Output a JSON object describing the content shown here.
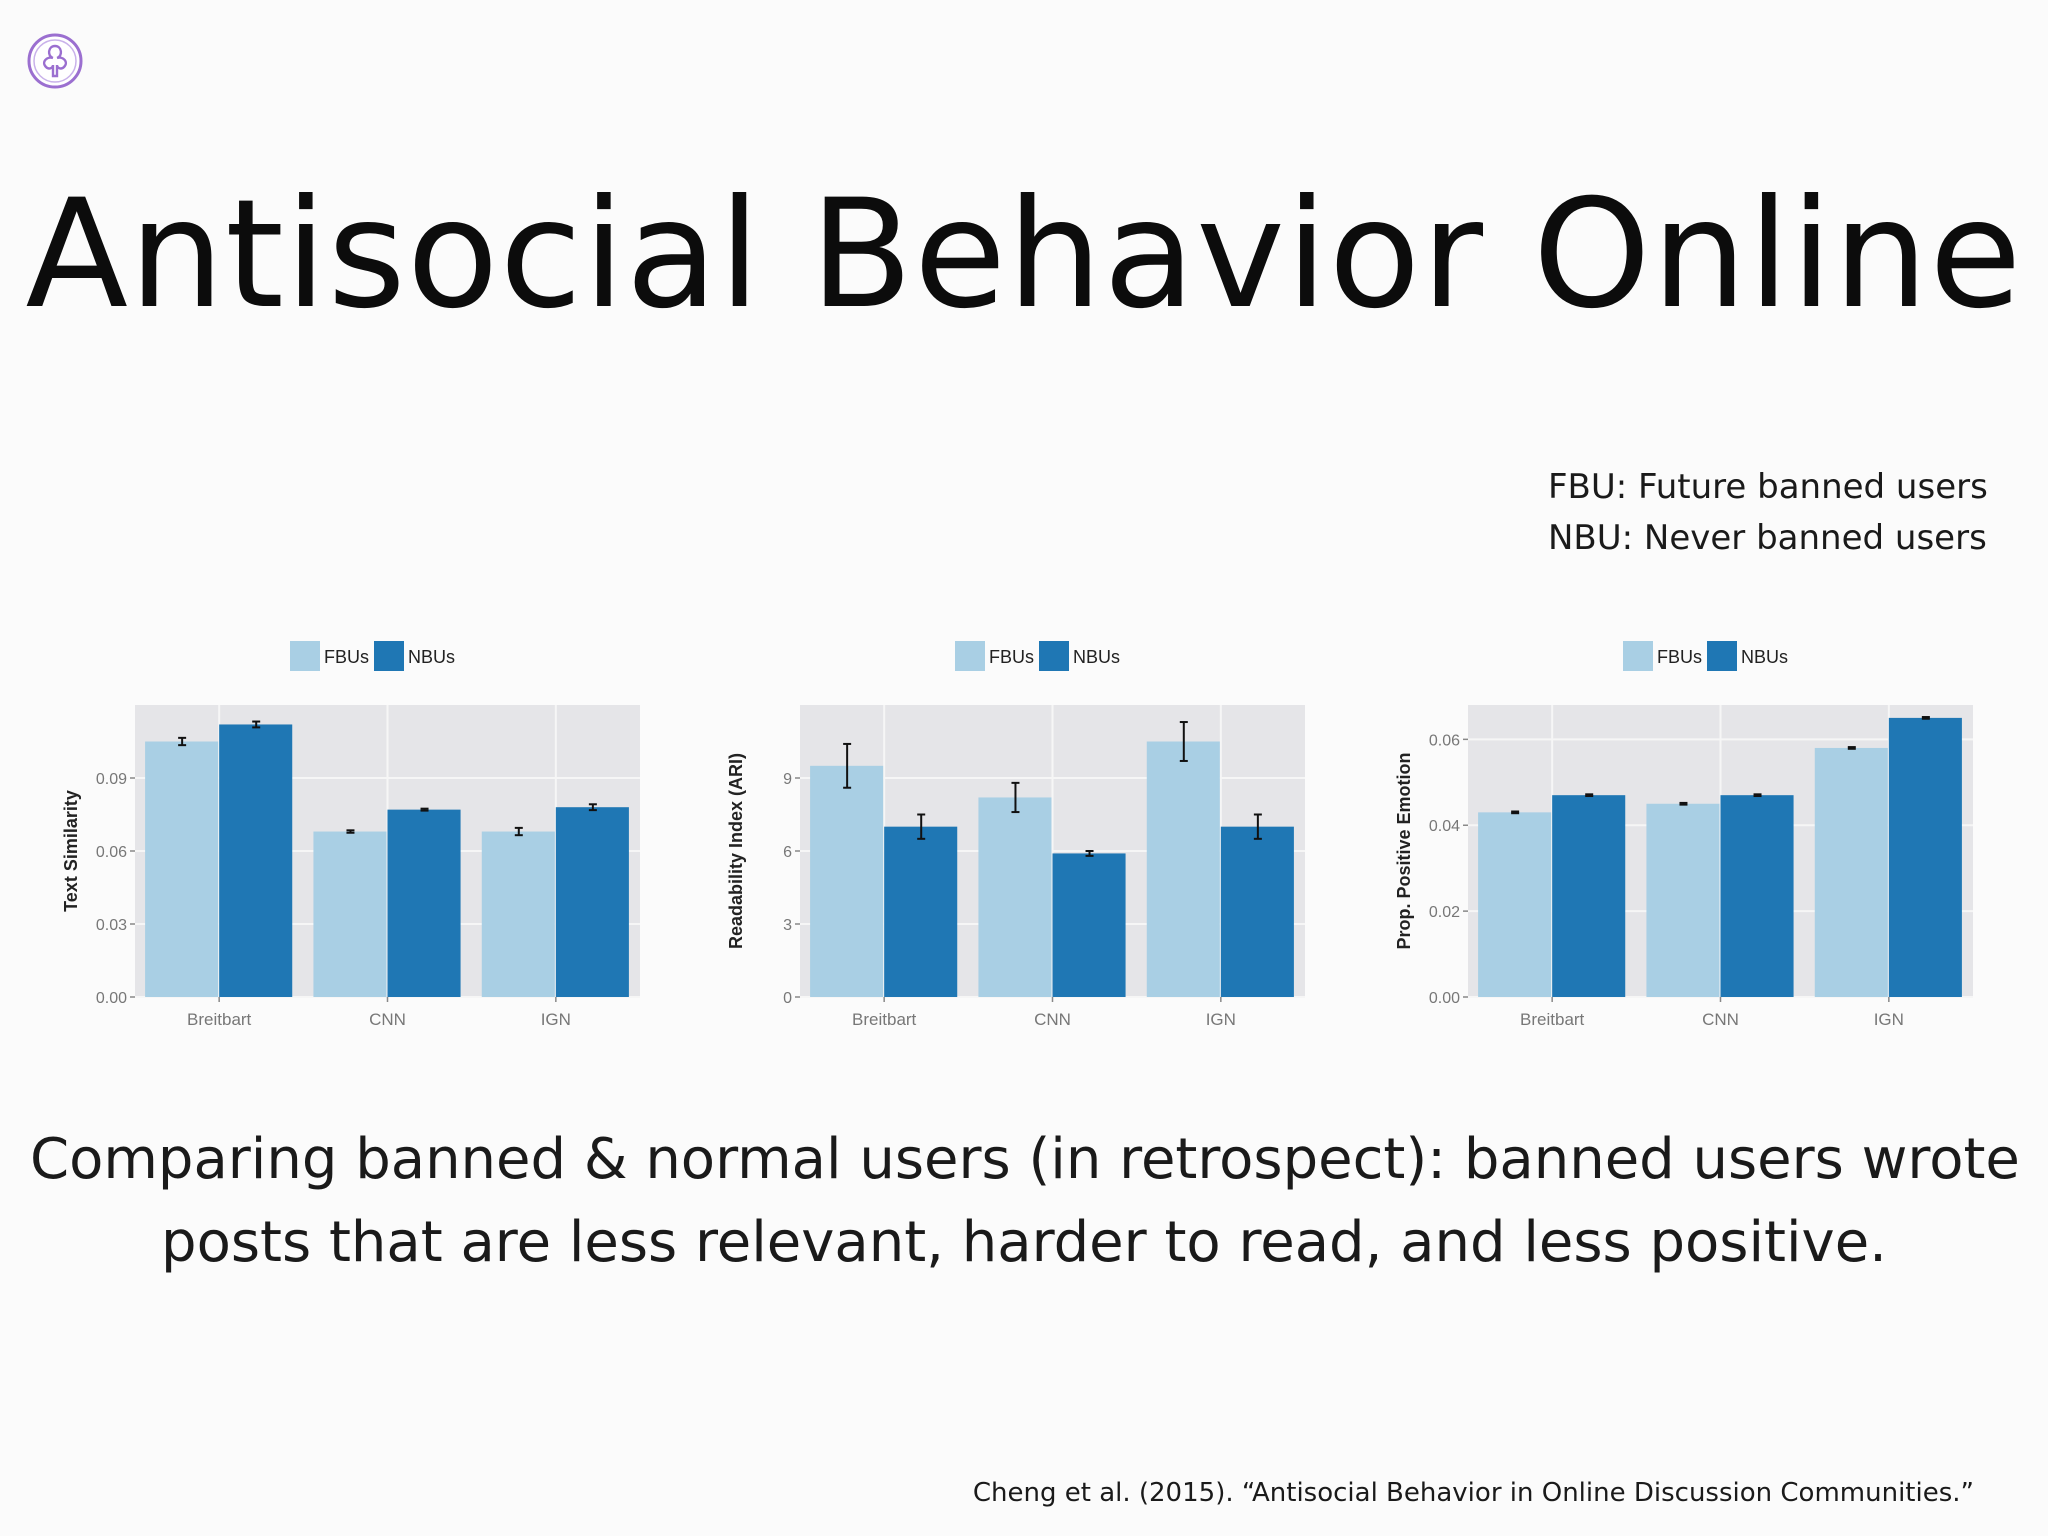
{
  "slide": {
    "title": "Antisocial Behavior Online",
    "definitions": [
      "FBU: Future banned users",
      "NBU: Never banned users"
    ],
    "summary_lines": [
      "Comparing banned & normal users (in retrospect): banned users wrote",
      "posts that are less relevant, harder to read, and less positive."
    ],
    "citation": "Cheng et al. (2015). “Antisocial Behavior in Online Discussion Communities.”"
  },
  "colors": {
    "fbu": "#a9cfe4",
    "nbu": "#1f77b4",
    "panel": "#e5e5e8",
    "grid": "#f6f6f6",
    "logo": "#9b6fd0"
  },
  "icons": {
    "logo": "university-seal-icon"
  },
  "chart_data": [
    {
      "type": "bar",
      "categories": [
        "Breitbart",
        "CNN",
        "IGN"
      ],
      "ylabel": "Text Similarity",
      "ylim": [
        0,
        0.12
      ],
      "yticks": [
        0.0,
        0.03,
        0.06,
        0.09
      ],
      "ytick_labels": [
        "0.00",
        "0.03",
        "0.06",
        "0.09"
      ],
      "legend": "top-center",
      "grid": true,
      "series": [
        {
          "name": "FBUs",
          "values": [
            0.105,
            0.068,
            0.068
          ],
          "errors": [
            0.0015,
            0.0005,
            0.0015
          ]
        },
        {
          "name": "NBUs",
          "values": [
            0.112,
            0.077,
            0.078
          ],
          "errors": [
            0.0012,
            0.0004,
            0.0012
          ]
        }
      ]
    },
    {
      "type": "bar",
      "categories": [
        "Breitbart",
        "CNN",
        "IGN"
      ],
      "ylabel": "Readability Index (ARI)",
      "ylim": [
        0,
        12
      ],
      "yticks": [
        0,
        3,
        6,
        9
      ],
      "ytick_labels": [
        "0",
        "3",
        "6",
        "9"
      ],
      "legend": "top-center",
      "grid": true,
      "series": [
        {
          "name": "FBUs",
          "values": [
            9.5,
            8.2,
            10.5
          ],
          "errors": [
            0.9,
            0.6,
            0.8
          ]
        },
        {
          "name": "NBUs",
          "values": [
            7.0,
            5.9,
            7.0
          ],
          "errors": [
            0.5,
            0.1,
            0.5
          ]
        }
      ]
    },
    {
      "type": "bar",
      "categories": [
        "Breitbart",
        "CNN",
        "IGN"
      ],
      "ylabel": "Prop. Positive Emotion",
      "ylim": [
        0,
        0.068
      ],
      "yticks": [
        0.0,
        0.02,
        0.04,
        0.06
      ],
      "ytick_labels": [
        "0.00",
        "0.02",
        "0.04",
        "0.06"
      ],
      "legend": "top-center",
      "grid": true,
      "series": [
        {
          "name": "FBUs",
          "values": [
            0.043,
            0.045,
            0.058
          ],
          "errors": [
            0.0002,
            0.0002,
            0.0002
          ]
        },
        {
          "name": "NBUs",
          "values": [
            0.047,
            0.047,
            0.065
          ],
          "errors": [
            0.0002,
            0.0002,
            0.0002
          ]
        }
      ]
    }
  ]
}
